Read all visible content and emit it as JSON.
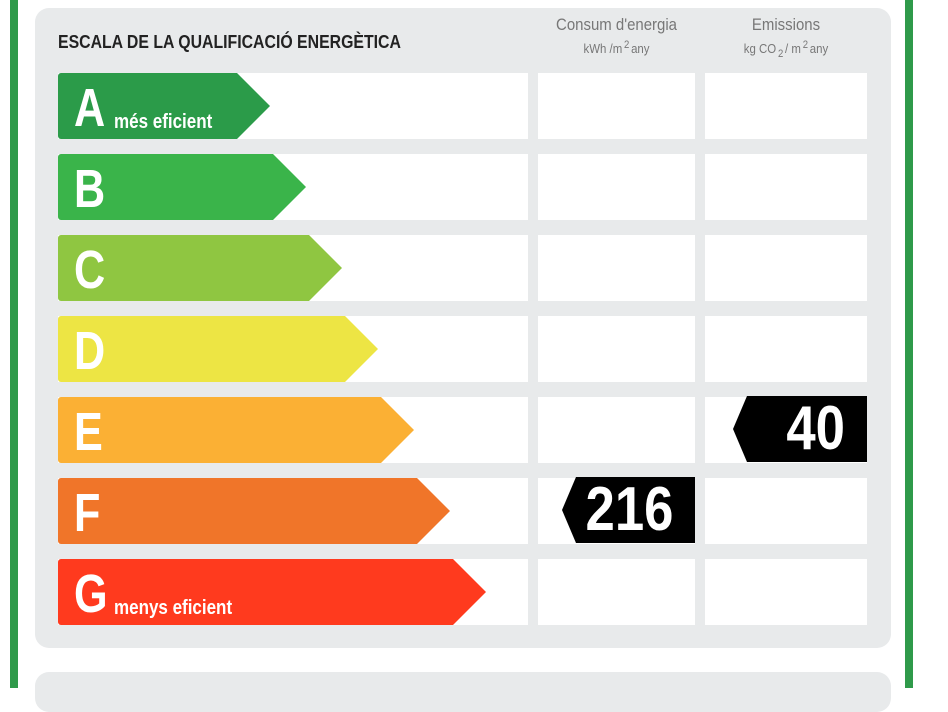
{
  "header": {
    "title": "ESCALA DE LA QUALIFICACIÓ ENERGÈTICA"
  },
  "columns": [
    {
      "title": "Consum d'energia",
      "unit": [
        {
          "text": "kWh /m"
        },
        {
          "sup": "2"
        },
        {
          "text": "any"
        }
      ]
    },
    {
      "title": "Emissions",
      "unit": [
        {
          "text": "kg CO"
        },
        {
          "sub": "2"
        },
        {
          "text": "/ m"
        },
        {
          "sup": "2"
        },
        {
          "text": "any"
        }
      ]
    }
  ],
  "rows": [
    {
      "letter": "A",
      "caption": "més eficient",
      "color": "#2b9b49"
    },
    {
      "letter": "B",
      "color": "#3ab44a"
    },
    {
      "letter": "C",
      "color": "#8fc641"
    },
    {
      "letter": "D",
      "color": "#ede544"
    },
    {
      "letter": "E",
      "color": "#fbb034",
      "emissions": "40"
    },
    {
      "letter": "F",
      "color": "#f07529",
      "consumption": "216"
    },
    {
      "letter": "G",
      "caption": "menys eficient",
      "color": "#ff3a1e"
    }
  ]
}
